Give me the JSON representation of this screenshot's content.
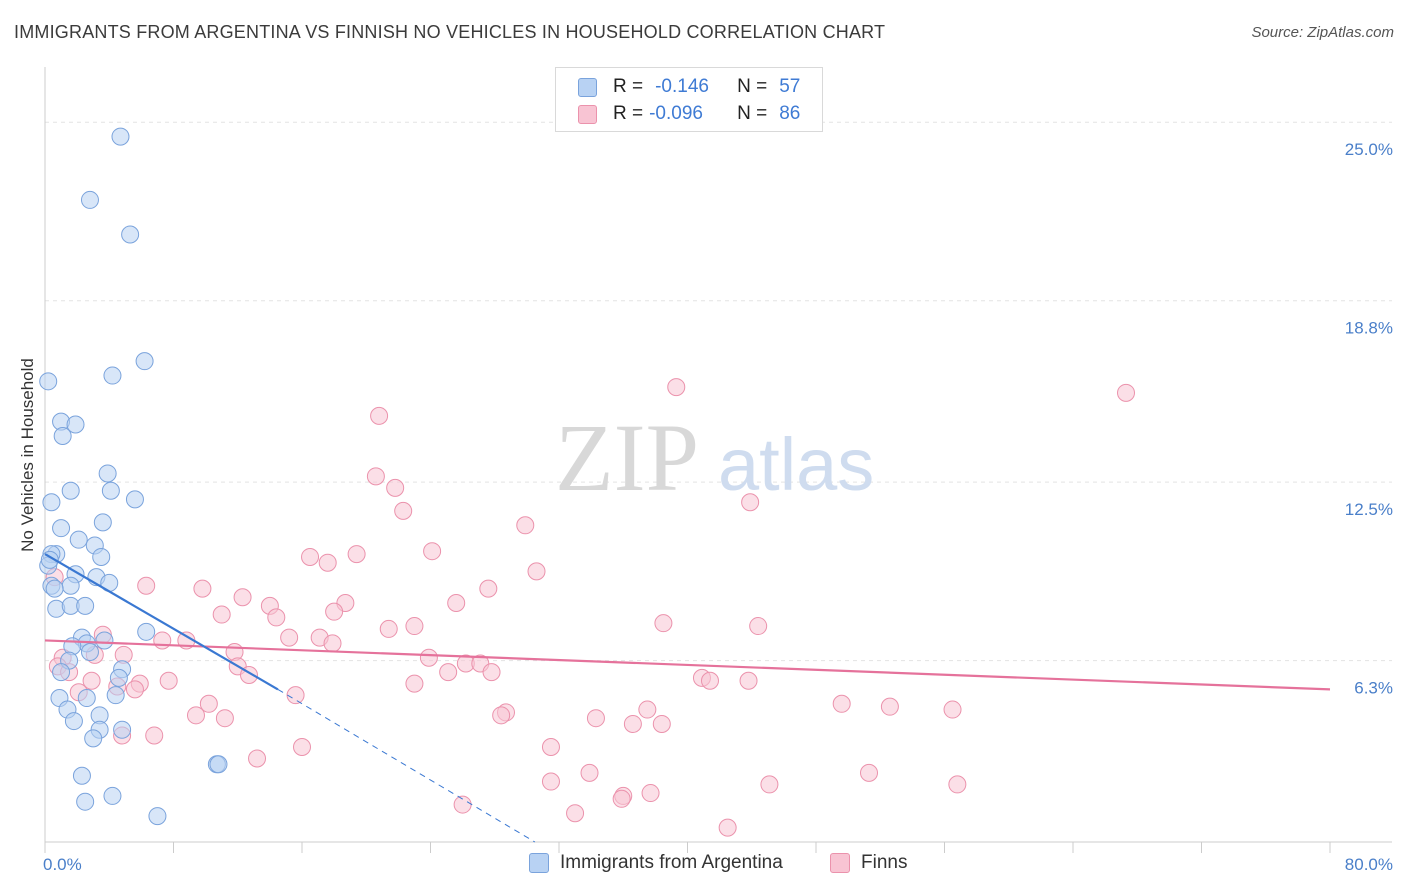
{
  "header": {
    "title": "IMMIGRANTS FROM ARGENTINA VS FINNISH NO VEHICLES IN HOUSEHOLD CORRELATION CHART",
    "source": "Source: ZipAtlas.com"
  },
  "watermark": {
    "zip": "ZIP",
    "atlas": "atlas"
  },
  "legend": {
    "rows": [
      {
        "r_label": "R =",
        "r_value": "-0.146",
        "n_label": "N =",
        "n_value": "57"
      },
      {
        "r_label": "R =",
        "r_value": "-0.096",
        "n_label": "N =",
        "n_value": "86"
      }
    ]
  },
  "bottom_legend": [
    "Immigrants from Argentina",
    "Finns"
  ],
  "colors": {
    "blue_fill": "#b8d2f3",
    "blue_stroke": "#7aa3dc",
    "blue_line": "#3a78d2",
    "pink_fill": "#f8c4d3",
    "pink_stroke": "#eb92ac",
    "pink_line": "#e5729b",
    "tick_text": "#4a7fc9",
    "grid": "#e3e3e3"
  },
  "chart_data": {
    "type": "scatter",
    "title": "IMMIGRANTS FROM ARGENTINA VS FINNISH NO VEHICLES IN HOUSEHOLD CORRELATION CHART",
    "xlabel": "",
    "ylabel": "No Vehicles in Household",
    "xlim": [
      0,
      80
    ],
    "ylim": [
      0,
      26.5
    ],
    "x_tick_labels": [
      "0.0%",
      "80.0%"
    ],
    "y_ticks": [
      6.3,
      12.5,
      18.8,
      25.0
    ],
    "y_tick_labels": [
      "6.3%",
      "12.5%",
      "18.8%",
      "25.0%"
    ],
    "series": [
      {
        "name": "Immigrants from Argentina",
        "r": -0.146,
        "n": 57,
        "trend": {
          "x": [
            0,
            14.5
          ],
          "y": [
            10.0,
            5.3
          ]
        },
        "trend_dashed": {
          "x": [
            14.5,
            30.5
          ],
          "y": [
            5.3,
            0
          ]
        },
        "points": [
          [
            4.7,
            24.5
          ],
          [
            2.8,
            22.3
          ],
          [
            5.3,
            21.1
          ],
          [
            6.2,
            16.7
          ],
          [
            4.2,
            16.2
          ],
          [
            0.2,
            16.0
          ],
          [
            1.0,
            14.6
          ],
          [
            1.9,
            14.5
          ],
          [
            1.1,
            14.1
          ],
          [
            3.9,
            12.8
          ],
          [
            1.6,
            12.2
          ],
          [
            4.1,
            12.2
          ],
          [
            0.4,
            11.8
          ],
          [
            5.6,
            11.9
          ],
          [
            3.6,
            11.1
          ],
          [
            1.0,
            10.9
          ],
          [
            2.1,
            10.5
          ],
          [
            3.1,
            10.3
          ],
          [
            0.7,
            10.0
          ],
          [
            0.4,
            10.0
          ],
          [
            3.5,
            9.9
          ],
          [
            0.2,
            9.6
          ],
          [
            1.9,
            9.3
          ],
          [
            3.2,
            9.2
          ],
          [
            4.0,
            9.0
          ],
          [
            0.4,
            8.9
          ],
          [
            1.6,
            8.9
          ],
          [
            0.7,
            8.1
          ],
          [
            1.6,
            8.2
          ],
          [
            2.5,
            8.2
          ],
          [
            0.6,
            8.8
          ],
          [
            6.3,
            7.3
          ],
          [
            2.3,
            7.1
          ],
          [
            2.6,
            6.9
          ],
          [
            1.7,
            6.8
          ],
          [
            3.7,
            7.0
          ],
          [
            2.8,
            6.6
          ],
          [
            1.5,
            6.3
          ],
          [
            4.8,
            6.0
          ],
          [
            1.0,
            5.9
          ],
          [
            4.6,
            5.7
          ],
          [
            4.4,
            5.1
          ],
          [
            2.6,
            5.0
          ],
          [
            0.9,
            5.0
          ],
          [
            1.4,
            4.6
          ],
          [
            1.8,
            4.2
          ],
          [
            3.4,
            4.4
          ],
          [
            4.8,
            3.9
          ],
          [
            3.4,
            3.9
          ],
          [
            3.0,
            3.6
          ],
          [
            10.7,
            2.7
          ],
          [
            10.8,
            2.7
          ],
          [
            2.3,
            2.3
          ],
          [
            4.2,
            1.6
          ],
          [
            2.5,
            1.4
          ],
          [
            7.0,
            0.9
          ],
          [
            0.3,
            9.8
          ]
        ]
      },
      {
        "name": "Finns",
        "r": -0.096,
        "n": 86,
        "trend": {
          "x": [
            0,
            80
          ],
          "y": [
            7.0,
            5.3
          ]
        },
        "points": [
          [
            39.3,
            15.8
          ],
          [
            67.3,
            15.6
          ],
          [
            20.8,
            14.8
          ],
          [
            20.6,
            12.7
          ],
          [
            21.8,
            12.3
          ],
          [
            22.3,
            11.5
          ],
          [
            43.9,
            11.8
          ],
          [
            29.9,
            11.0
          ],
          [
            19.4,
            10.0
          ],
          [
            24.1,
            10.1
          ],
          [
            16.5,
            9.9
          ],
          [
            17.6,
            9.7
          ],
          [
            30.6,
            9.4
          ],
          [
            6.3,
            8.9
          ],
          [
            9.8,
            8.8
          ],
          [
            27.6,
            8.8
          ],
          [
            12.3,
            8.5
          ],
          [
            18.7,
            8.3
          ],
          [
            14.0,
            8.2
          ],
          [
            25.6,
            8.3
          ],
          [
            11.0,
            7.9
          ],
          [
            14.4,
            7.8
          ],
          [
            18.0,
            8.0
          ],
          [
            38.5,
            7.6
          ],
          [
            44.4,
            7.5
          ],
          [
            21.4,
            7.4
          ],
          [
            23.0,
            7.5
          ],
          [
            3.6,
            7.2
          ],
          [
            15.2,
            7.1
          ],
          [
            17.1,
            7.1
          ],
          [
            7.3,
            7.0
          ],
          [
            8.8,
            7.0
          ],
          [
            17.9,
            6.9
          ],
          [
            4.9,
            6.5
          ],
          [
            11.8,
            6.6
          ],
          [
            1.1,
            6.4
          ],
          [
            23.9,
            6.4
          ],
          [
            3.1,
            6.5
          ],
          [
            12.0,
            6.1
          ],
          [
            26.2,
            6.2
          ],
          [
            27.1,
            6.2
          ],
          [
            0.8,
            6.1
          ],
          [
            1.5,
            5.9
          ],
          [
            25.1,
            5.9
          ],
          [
            27.8,
            5.9
          ],
          [
            12.7,
            5.8
          ],
          [
            2.9,
            5.6
          ],
          [
            5.9,
            5.5
          ],
          [
            23.0,
            5.5
          ],
          [
            40.9,
            5.7
          ],
          [
            41.4,
            5.6
          ],
          [
            43.8,
            5.6
          ],
          [
            7.7,
            5.6
          ],
          [
            4.5,
            5.4
          ],
          [
            2.1,
            5.2
          ],
          [
            15.6,
            5.1
          ],
          [
            5.6,
            5.3
          ],
          [
            10.2,
            4.8
          ],
          [
            49.6,
            4.8
          ],
          [
            52.6,
            4.7
          ],
          [
            56.5,
            4.6
          ],
          [
            9.4,
            4.4
          ],
          [
            11.2,
            4.3
          ],
          [
            28.7,
            4.5
          ],
          [
            28.4,
            4.4
          ],
          [
            34.3,
            4.3
          ],
          [
            37.5,
            4.6
          ],
          [
            38.4,
            4.1
          ],
          [
            36.6,
            4.1
          ],
          [
            4.8,
            3.7
          ],
          [
            6.8,
            3.7
          ],
          [
            16.0,
            3.3
          ],
          [
            31.5,
            3.3
          ],
          [
            13.2,
            2.9
          ],
          [
            51.3,
            2.4
          ],
          [
            33.9,
            2.4
          ],
          [
            31.5,
            2.1
          ],
          [
            45.1,
            2.0
          ],
          [
            56.8,
            2.0
          ],
          [
            36.0,
            1.6
          ],
          [
            37.7,
            1.7
          ],
          [
            35.9,
            1.5
          ],
          [
            26.0,
            1.3
          ],
          [
            33.0,
            1.0
          ],
          [
            42.5,
            0.5
          ],
          [
            0.6,
            9.2
          ]
        ]
      }
    ]
  }
}
